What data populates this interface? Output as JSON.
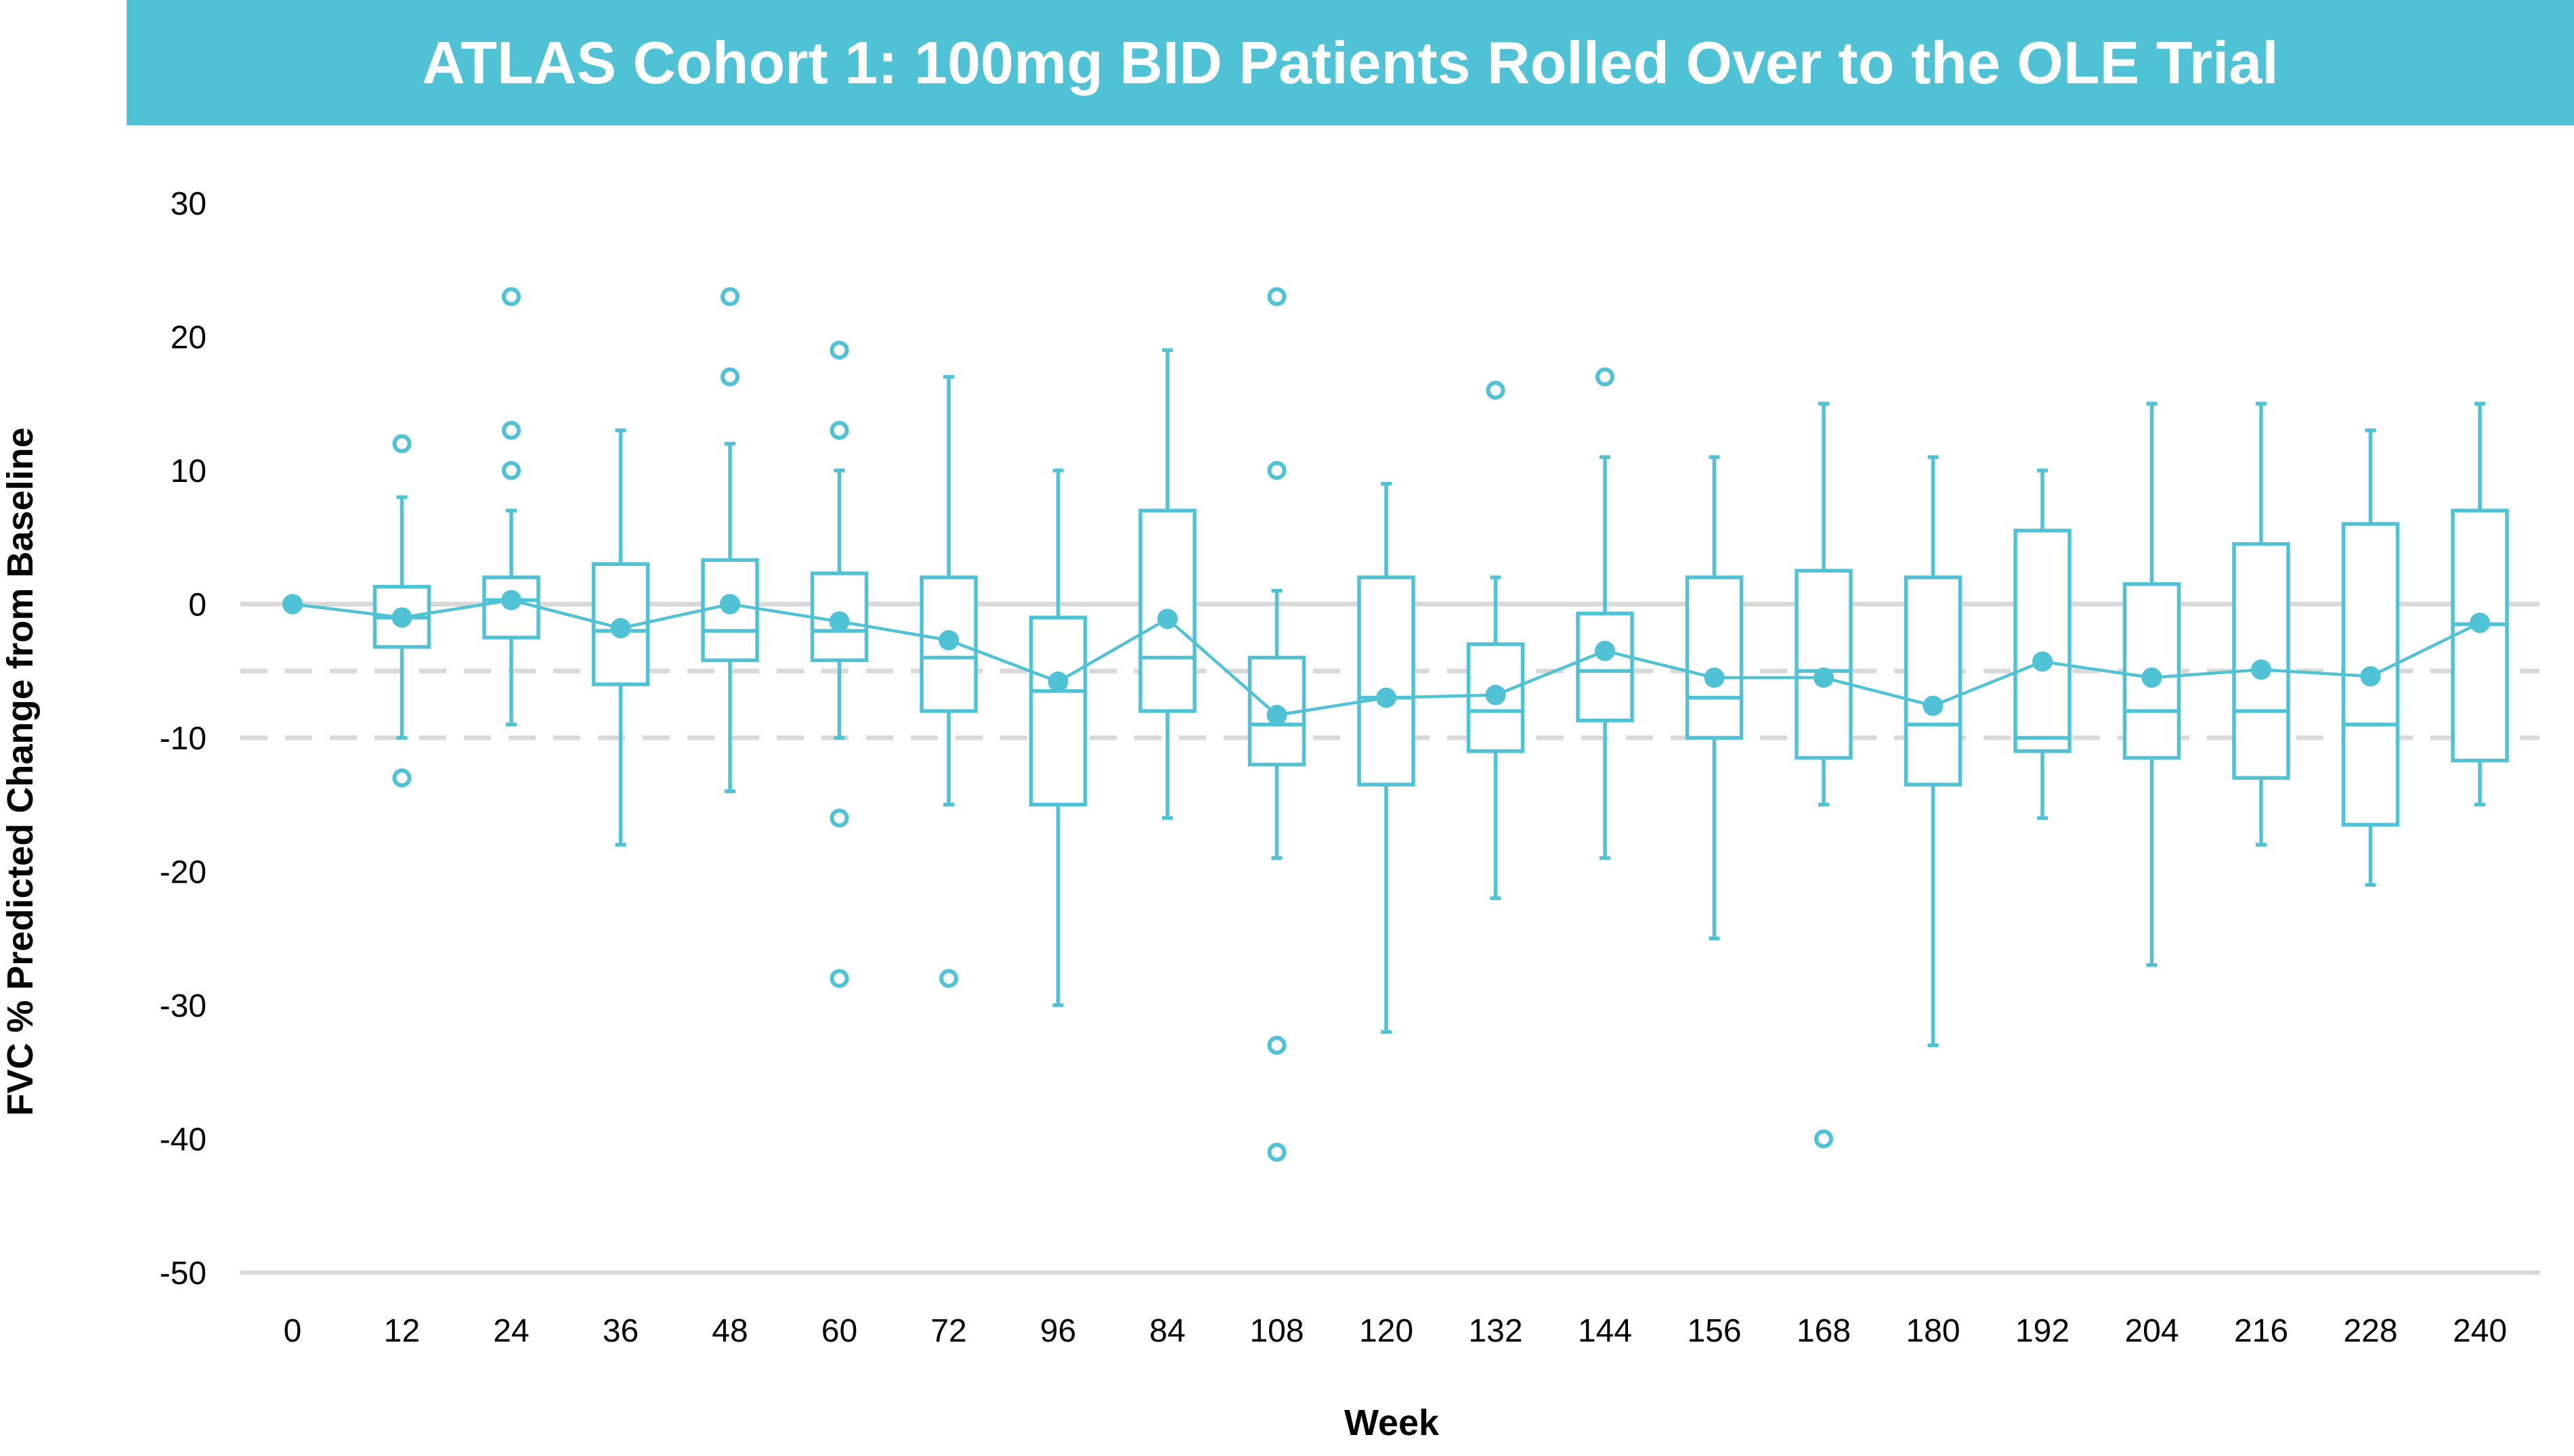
{
  "title": "ATLAS Cohort 1: 100mg BID Patients Rolled Over to the OLE Trial",
  "colors": {
    "accent": "#4fc3d5",
    "zero_line": "#d9d9d9",
    "ref_dash": "#d9d9d9",
    "text": "#000000"
  },
  "chart_data": {
    "type": "box",
    "title": "ATLAS Cohort 1: 100mg BID Patients Rolled Over to the OLE Trial",
    "xlabel": "Week",
    "ylabel": "FVC % Predicted Change from Baseline",
    "ylim": [
      -50,
      30
    ],
    "yticks": [
      30,
      20,
      10,
      0,
      -10,
      -20,
      -30,
      -40,
      -50
    ],
    "reference_lines": [
      0,
      -5,
      -10
    ],
    "grid": false,
    "categories": [
      "0",
      "12",
      "24",
      "36",
      "48",
      "60",
      "72",
      "96",
      "84",
      "108",
      "120",
      "132",
      "144",
      "156",
      "168",
      "180",
      "192",
      "204",
      "216",
      "228",
      "240"
    ],
    "boxes": [
      {
        "week": "0",
        "mean": 0,
        "median": 0,
        "q1": 0,
        "q3": 0,
        "whisker_low": 0,
        "whisker_high": 0,
        "outliers": []
      },
      {
        "week": "12",
        "mean": -1,
        "median": -1,
        "q1": -3.2,
        "q3": 1.3,
        "whisker_low": -10,
        "whisker_high": 8,
        "outliers": [
          12,
          -13
        ]
      },
      {
        "week": "24",
        "mean": 0.3,
        "median": 0.3,
        "q1": -2.5,
        "q3": 2,
        "whisker_low": -9,
        "whisker_high": 7,
        "outliers": [
          23,
          13,
          10
        ]
      },
      {
        "week": "36",
        "mean": -1.8,
        "median": -2,
        "q1": -6,
        "q3": 3,
        "whisker_low": -18,
        "whisker_high": 13,
        "outliers": []
      },
      {
        "week": "48",
        "mean": 0,
        "median": -2,
        "q1": -4.2,
        "q3": 3.3,
        "whisker_low": -14,
        "whisker_high": 12,
        "outliers": [
          23,
          17
        ]
      },
      {
        "week": "60",
        "mean": -1.3,
        "median": -2,
        "q1": -4.2,
        "q3": 2.3,
        "whisker_low": -10,
        "whisker_high": 10,
        "outliers": [
          19,
          13,
          -16,
          -28
        ]
      },
      {
        "week": "72",
        "mean": -2.7,
        "median": -4,
        "q1": -8,
        "q3": 2,
        "whisker_low": -15,
        "whisker_high": 17,
        "outliers": [
          -28
        ]
      },
      {
        "week": "96",
        "mean": -5.8,
        "median": -6.5,
        "q1": -15,
        "q3": -1,
        "whisker_low": -30,
        "whisker_high": 10,
        "outliers": []
      },
      {
        "week": "84",
        "mean": -1.1,
        "median": -4,
        "q1": -8,
        "q3": 7,
        "whisker_low": -16,
        "whisker_high": 19,
        "outliers": []
      },
      {
        "week": "108",
        "mean": -8.3,
        "median": -9,
        "q1": -12,
        "q3": -4,
        "whisker_low": -19,
        "whisker_high": 1,
        "outliers": [
          23,
          10,
          -33,
          -41
        ]
      },
      {
        "week": "120",
        "mean": -7,
        "median": -7,
        "q1": -13.5,
        "q3": 2,
        "whisker_low": -32,
        "whisker_high": 9,
        "outliers": []
      },
      {
        "week": "132",
        "mean": -6.8,
        "median": -8,
        "q1": -11,
        "q3": -3,
        "whisker_low": -22,
        "whisker_high": 2,
        "outliers": [
          16
        ]
      },
      {
        "week": "144",
        "mean": -3.5,
        "median": -5,
        "q1": -8.7,
        "q3": -0.7,
        "whisker_low": -19,
        "whisker_high": 11,
        "outliers": [
          17
        ]
      },
      {
        "week": "156",
        "mean": -5.5,
        "median": -7,
        "q1": -10,
        "q3": 2,
        "whisker_low": -25,
        "whisker_high": 11,
        "outliers": []
      },
      {
        "week": "168",
        "mean": -5.5,
        "median": -5,
        "q1": -11.5,
        "q3": 2.5,
        "whisker_low": -15,
        "whisker_high": 15,
        "outliers": [
          -40
        ]
      },
      {
        "week": "180",
        "mean": -7.6,
        "median": -9,
        "q1": -13.5,
        "q3": 2,
        "whisker_low": -33,
        "whisker_high": 11,
        "outliers": []
      },
      {
        "week": "192",
        "mean": -4.3,
        "median": -10,
        "q1": -11,
        "q3": 5.5,
        "whisker_low": -16,
        "whisker_high": 10,
        "outliers": []
      },
      {
        "week": "204",
        "mean": -5.5,
        "median": -8,
        "q1": -11.5,
        "q3": 1.5,
        "whisker_low": -27,
        "whisker_high": 15,
        "outliers": []
      },
      {
        "week": "216",
        "mean": -4.9,
        "median": -8,
        "q1": -13,
        "q3": 4.5,
        "whisker_low": -18,
        "whisker_high": 15,
        "outliers": []
      },
      {
        "week": "228",
        "mean": -5.4,
        "median": -9,
        "q1": -16.5,
        "q3": 6,
        "whisker_low": -21,
        "whisker_high": 13,
        "outliers": []
      },
      {
        "week": "240",
        "mean": -1.4,
        "median": -1.5,
        "q1": -11.7,
        "q3": 7,
        "whisker_low": -15,
        "whisker_high": 15,
        "outliers": []
      }
    ]
  }
}
